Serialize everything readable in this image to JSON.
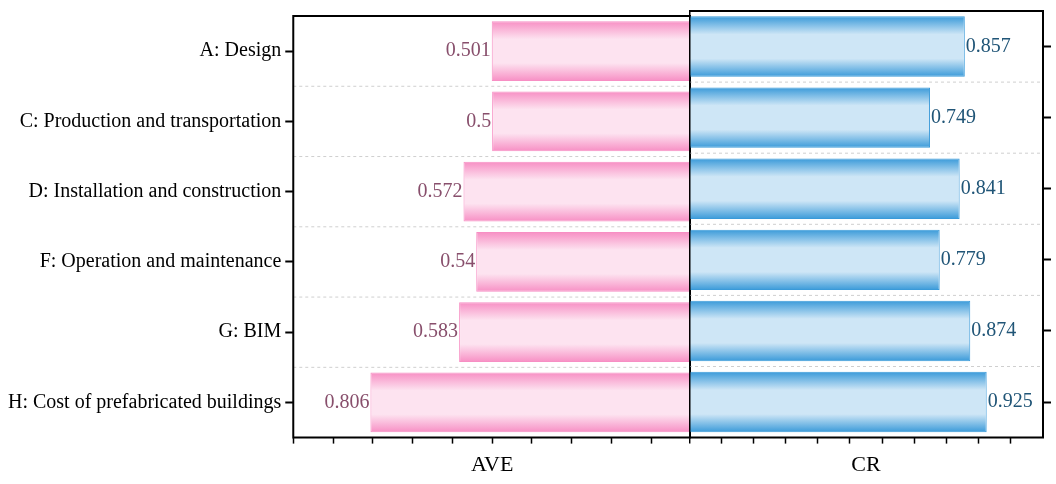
{
  "chart_data": [
    {
      "type": "bar",
      "orientation": "horizontal",
      "xlabel": "AVE",
      "categories": [
        "A: Design",
        "C: Production and transportation",
        "D: Installation and construction",
        "F: Operation and maintenance",
        "G: BIM",
        "H: Cost of prefabricated buildings"
      ],
      "values": [
        0.501,
        0.5,
        0.572,
        0.54,
        0.583,
        0.806
      ],
      "color": "#f78fc4",
      "xlim": [
        1,
        0
      ],
      "xticks": [
        {
          "value": 1,
          "label": null
        },
        {
          "value": 0.9,
          "label": null
        },
        {
          "value": 0.8,
          "label": null
        },
        {
          "value": 0.7,
          "label": null
        },
        {
          "value": 0.6,
          "label": null
        },
        {
          "value": 0.5,
          "label": null
        },
        {
          "value": 0.4,
          "label": null
        },
        {
          "value": 0.3,
          "label": null
        },
        {
          "value": 0.2,
          "label": null
        },
        {
          "value": 0.1,
          "label": null
        },
        {
          "value": 0,
          "label": null
        }
      ],
      "data_labels": true,
      "grid": "y",
      "legend": false,
      "tick_labels": "y"
    },
    {
      "type": "bar",
      "orientation": "horizontal",
      "xlabel": "CR",
      "categories": [
        null,
        null,
        null,
        null,
        null,
        null
      ],
      "values": [
        0.857,
        0.749,
        0.841,
        0.779,
        0.874,
        0.925
      ],
      "color": "#3a9ad9",
      "xlim": [
        0,
        1.1
      ],
      "xticks": [
        {
          "value": 0,
          "label": null
        },
        {
          "value": 0.1,
          "label": null
        },
        {
          "value": 0.2,
          "label": null
        },
        {
          "value": 0.3,
          "label": null
        },
        {
          "value": 0.4,
          "label": null
        },
        {
          "value": 0.5,
          "label": null
        },
        {
          "value": 0.6,
          "label": null
        },
        {
          "value": 0.7,
          "label": null
        },
        {
          "value": 0.8,
          "label": null
        },
        {
          "value": 0.9,
          "label": null
        },
        {
          "value": 1,
          "label": null
        }
      ],
      "data_labels": true,
      "grid": "y",
      "legend": false,
      "tick_labels": false
    }
  ]
}
